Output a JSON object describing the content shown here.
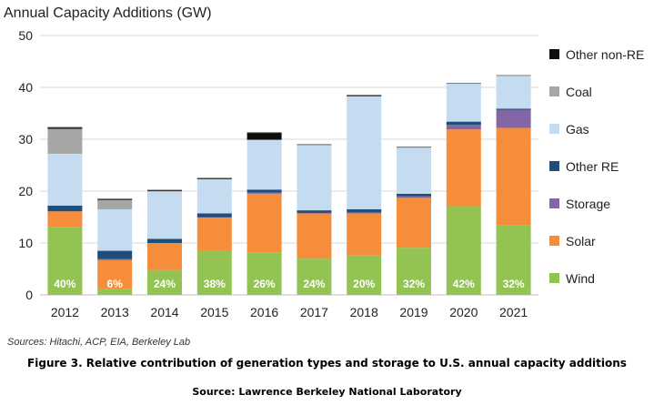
{
  "chart_data": {
    "type": "bar",
    "stacked": true,
    "title": "Annual Capacity Additions (GW)",
    "categories": [
      "2012",
      "2013",
      "2014",
      "2015",
      "2016",
      "2017",
      "2018",
      "2019",
      "2020",
      "2021"
    ],
    "ylim": [
      0,
      50
    ],
    "yticks": [
      0,
      10,
      20,
      30,
      40,
      50
    ],
    "grid": true,
    "legend_position": "right",
    "series": [
      {
        "name": "Wind",
        "color": "#92c353",
        "values": [
          13.1,
          1.1,
          4.8,
          8.6,
          8.2,
          7.0,
          7.6,
          9.1,
          17.1,
          13.4
        ]
      },
      {
        "name": "Solar",
        "color": "#f68d3a",
        "values": [
          3.0,
          5.6,
          5.2,
          6.3,
          11.3,
          8.7,
          8.1,
          9.6,
          14.8,
          18.8
        ]
      },
      {
        "name": "Storage",
        "color": "#8366a6",
        "values": [
          0,
          0.2,
          0,
          0.1,
          0.2,
          0.1,
          0.2,
          0.3,
          0.9,
          3.5
        ]
      },
      {
        "name": "Other RE",
        "color": "#1f4e79",
        "values": [
          1.1,
          1.6,
          0.8,
          0.7,
          0.6,
          0.5,
          0.6,
          0.5,
          0.6,
          0.2
        ]
      },
      {
        "name": "Gas",
        "color": "#c5dcf0",
        "values": [
          10.0,
          8.0,
          9.1,
          6.6,
          9.6,
          12.6,
          21.8,
          8.9,
          7.3,
          6.4
        ]
      },
      {
        "name": "Coal",
        "color": "#a6a6a6",
        "values": [
          4.8,
          1.8,
          0.1,
          0,
          0,
          0,
          0,
          0,
          0,
          0
        ]
      },
      {
        "name": "Other non-RE",
        "color": "#0d0d0d",
        "values": [
          0.3,
          0.2,
          0.2,
          0.2,
          1.4,
          0.1,
          0.2,
          0.1,
          0.1,
          0
        ]
      }
    ],
    "legend_order": [
      "Other non-RE",
      "Coal",
      "Gas",
      "Other RE",
      "Storage",
      "Solar",
      "Wind"
    ],
    "wind_share_labels": [
      "40%",
      "6%",
      "24%",
      "38%",
      "26%",
      "24%",
      "20%",
      "32%",
      "42%",
      "32%"
    ]
  },
  "sources": "Sources: Hitachi, ACP, EIA, Berkeley Lab",
  "caption": "Figure 3. Relative contribution of generation types and storage to U.S. annual capacity additions",
  "credit": "Source: Lawrence Berkeley National Laboratory"
}
